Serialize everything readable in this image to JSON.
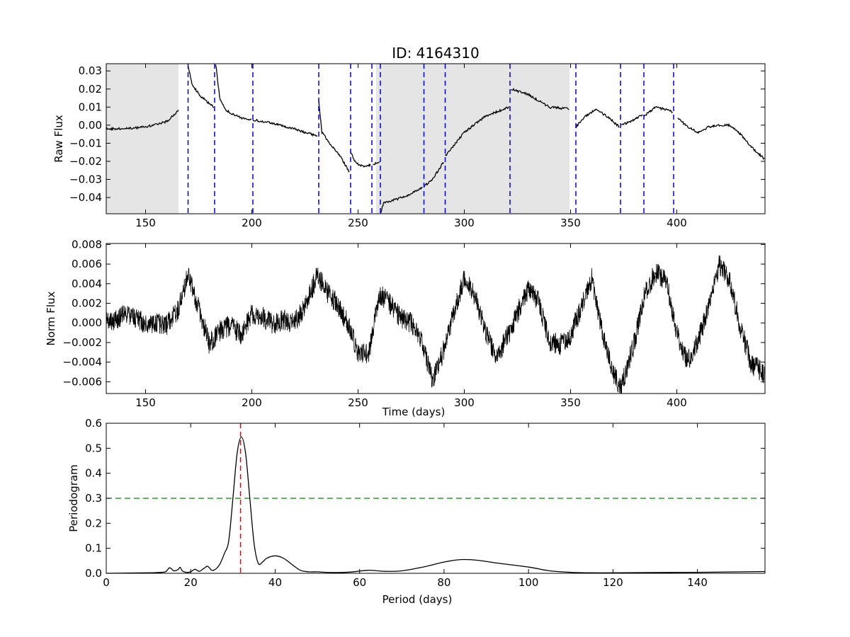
{
  "title": "ID: 4164310",
  "colors": {
    "curve": "#000000",
    "quarter_boundary": "#0000cc",
    "threshold": "#008800",
    "period_marker": "#ee0000",
    "shade": "#e5e5e5"
  },
  "chart_data": [
    {
      "id": "raw",
      "type": "line",
      "title": "ID: 4164310",
      "xlabel": "",
      "ylabel": "Raw Flux",
      "xlim": [
        131.5,
        441.5
      ],
      "ylim": [
        -0.049,
        0.034
      ],
      "xticks": [
        150,
        200,
        250,
        300,
        350,
        400
      ],
      "yticks": [
        0.03,
        0.02,
        0.01,
        0.0,
        -0.01,
        -0.02,
        -0.03,
        -0.04
      ],
      "ytick_labels": [
        "0.03",
        "0.02",
        "0.01",
        "0.00",
        "−0.01",
        "−0.02",
        "−0.03",
        "−0.04"
      ],
      "shaded_regions": [
        [
          131.5,
          165.5
        ],
        [
          258.5,
          349.5
        ]
      ],
      "vlines": [
        170,
        182.5,
        200.5,
        231.5,
        246.5,
        256.5,
        260.5,
        281,
        291,
        321.5,
        352.5,
        373.5,
        384.5,
        398.5
      ],
      "noise": 0.0006,
      "segments": [
        {
          "x": [
            131.5,
            140,
            150,
            160,
            165.5
          ],
          "y": [
            -0.002,
            -0.002,
            -0.001,
            0.002,
            0.008
          ]
        },
        {
          "x": [
            170,
            172,
            176,
            180,
            182
          ],
          "y": [
            0.033,
            0.022,
            0.016,
            0.012,
            0.01
          ]
        },
        {
          "x": [
            183,
            185,
            188,
            195,
            200
          ],
          "y": [
            0.034,
            0.014,
            0.008,
            0.004,
            0.003
          ]
        },
        {
          "x": [
            200.5,
            210,
            220,
            225,
            231
          ],
          "y": [
            0.003,
            0.001,
            -0.002,
            -0.004,
            -0.006
          ]
        },
        {
          "x": [
            231.5,
            233,
            236,
            242,
            246
          ],
          "y": [
            0.013,
            -0.004,
            -0.009,
            -0.018,
            -0.026
          ]
        },
        {
          "x": [
            246.5,
            249,
            253,
            256
          ],
          "y": [
            -0.015,
            -0.021,
            -0.023,
            -0.022
          ]
        },
        {
          "x": [
            257,
            258.5,
            260
          ],
          "y": [
            -0.022,
            -0.021,
            -0.02
          ]
        },
        {
          "x": [
            260.5,
            262,
            268,
            275,
            280.5
          ],
          "y": [
            -0.049,
            -0.043,
            -0.041,
            -0.038,
            -0.034
          ]
        },
        {
          "x": [
            281,
            285,
            290.5
          ],
          "y": [
            -0.034,
            -0.03,
            -0.02
          ]
        },
        {
          "x": [
            291,
            300,
            310,
            321
          ],
          "y": [
            -0.017,
            -0.004,
            0.005,
            0.01
          ]
        },
        {
          "x": [
            322,
            330,
            340,
            349.5
          ],
          "y": [
            0.02,
            0.017,
            0.01,
            0.009
          ]
        },
        {
          "x": [
            352.5,
            357,
            362,
            368,
            373
          ],
          "y": [
            -0.001,
            0.005,
            0.009,
            0.004,
            -0.001
          ]
        },
        {
          "x": [
            374,
            380,
            384
          ],
          "y": [
            0.0,
            0.003,
            0.006
          ]
        },
        {
          "x": [
            384.5,
            390,
            397,
            398
          ],
          "y": [
            0.005,
            0.01,
            0.008,
            0.007
          ]
        },
        {
          "x": [
            400.5,
            405,
            410,
            415,
            420,
            425,
            430,
            435,
            441.5
          ],
          "y": [
            0.004,
            -0.001,
            -0.004,
            -0.001,
            0.0,
            0.0,
            -0.005,
            -0.012,
            -0.019
          ]
        }
      ]
    },
    {
      "id": "norm",
      "type": "line",
      "xlabel": "Time (days)",
      "ylabel": "Norm Flux",
      "xlim": [
        131.5,
        441.5
      ],
      "ylim": [
        -0.0072,
        0.0081
      ],
      "xticks": [
        150,
        200,
        250,
        300,
        350,
        400
      ],
      "yticks": [
        0.008,
        0.006,
        0.004,
        0.002,
        0.0,
        -0.002,
        -0.004,
        -0.006
      ],
      "ytick_labels": [
        "0.008",
        "0.006",
        "0.004",
        "0.002",
        "0.000",
        "−0.002",
        "−0.004",
        "−0.006"
      ],
      "noise": 0.0011,
      "series": [
        {
          "x": [
            131.5,
            140,
            150,
            160,
            165,
            170,
            175,
            180,
            185,
            190,
            195,
            200,
            205,
            210,
            215,
            220,
            225,
            231,
            235,
            240,
            245,
            250,
            255,
            260,
            265,
            270,
            275,
            280,
            285,
            290,
            295,
            300,
            305,
            310,
            315,
            320,
            325,
            330,
            335,
            340,
            345,
            350,
            355,
            360,
            365,
            370,
            374,
            380,
            385,
            390,
            395,
            400,
            405,
            410,
            415,
            420,
            425,
            430,
            435,
            441.5
          ],
          "y": [
            0.0,
            0.0008,
            0.0,
            -0.0002,
            0.0012,
            0.0048,
            0.0015,
            -0.0022,
            -0.0008,
            -0.0002,
            -0.0012,
            0.001,
            0.0006,
            -0.0002,
            0.0004,
            0.0,
            0.0016,
            0.005,
            0.0032,
            0.002,
            0.0,
            -0.003,
            -0.0032,
            0.003,
            0.002,
            0.0005,
            0.0,
            -0.002,
            -0.0058,
            -0.003,
            0.001,
            0.0045,
            0.0028,
            -0.001,
            -0.0035,
            -0.0015,
            0.001,
            0.0035,
            0.0022,
            -0.002,
            -0.0022,
            -0.0012,
            0.0015,
            0.0045,
            -0.001,
            -0.0052,
            -0.0065,
            -0.002,
            0.003,
            0.0052,
            0.0042,
            -0.001,
            -0.004,
            -0.0018,
            0.0015,
            0.006,
            0.0042,
            -0.0005,
            -0.0042,
            -0.0052
          ]
        }
      ]
    },
    {
      "id": "periodogram",
      "type": "line",
      "xlabel": "Period (days)",
      "ylabel": "Periodogram",
      "xlim": [
        0,
        156
      ],
      "ylim": [
        0,
        0.6
      ],
      "xticks": [
        0,
        20,
        40,
        60,
        80,
        100,
        120,
        140
      ],
      "yticks": [
        0.6,
        0.5,
        0.4,
        0.3,
        0.2,
        0.1,
        0.0
      ],
      "ytick_labels": [
        "0.6",
        "0.5",
        "0.4",
        "0.3",
        "0.2",
        "0.1",
        "0.0"
      ],
      "threshold": 0.3,
      "peak_period": 31.8,
      "series": [
        {
          "x": [
            0,
            10,
            12,
            14,
            15,
            16,
            17,
            17.5,
            18,
            19,
            20,
            21,
            22,
            23,
            24,
            25,
            26,
            27,
            28,
            29,
            30,
            31,
            32,
            33,
            34,
            35,
            36,
            37,
            38,
            40,
            42,
            44,
            46,
            48,
            50,
            52,
            55,
            58,
            62,
            66,
            70,
            75,
            80,
            84,
            88,
            93,
            100,
            105,
            110,
            115,
            120,
            130,
            140,
            156
          ],
          "y": [
            0.0,
            0.002,
            0.003,
            0.006,
            0.022,
            0.01,
            0.015,
            0.024,
            0.01,
            0.004,
            0.006,
            0.016,
            0.008,
            0.018,
            0.028,
            0.012,
            0.018,
            0.04,
            0.08,
            0.13,
            0.3,
            0.48,
            0.545,
            0.48,
            0.3,
            0.12,
            0.04,
            0.045,
            0.06,
            0.07,
            0.06,
            0.035,
            0.012,
            0.006,
            0.006,
            0.004,
            0.003,
            0.005,
            0.012,
            0.008,
            0.01,
            0.025,
            0.045,
            0.055,
            0.052,
            0.04,
            0.025,
            0.01,
            0.004,
            0.002,
            0.002,
            0.003,
            0.004,
            0.007
          ]
        }
      ]
    }
  ]
}
